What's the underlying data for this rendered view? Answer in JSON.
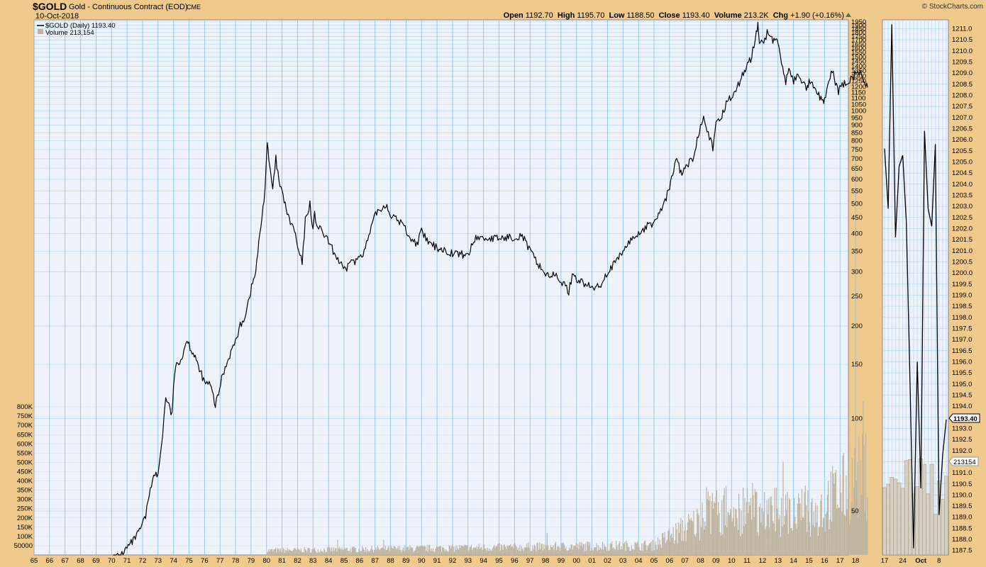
{
  "header": {
    "symbol": "$GOLD",
    "description": "Gold - Continuous Contract (EOD)",
    "exchange": "CME",
    "date": "10-Oct-2018",
    "brand": "© StockCharts.com",
    "open_label": "Open",
    "open": "1192.70",
    "high_label": "High",
    "high": "1195.70",
    "low_label": "Low",
    "low": "1188.50",
    "close_label": "Close",
    "close": "1193.40",
    "volume_label": "Volume",
    "volume": "213.2K",
    "chg_label": "Chg",
    "chg": "+1.90 (+0.16%)"
  },
  "legend": {
    "price": "$GOLD (Daily) 1193.40",
    "volume": "Volume 213,154"
  },
  "colors": {
    "frame": "#f0c98c",
    "plot_bg": "#eef2fb",
    "grid_minor": "#aed4ec",
    "grid_major": "#7fc0e6",
    "price_line": "#000000",
    "volume": "#bfb4a0"
  },
  "chart_data": [
    {
      "type": "line",
      "name": "main",
      "log_scale": true,
      "grid": true,
      "legend_position": "top-left",
      "ylim": [
        36,
        1980
      ],
      "xlim": [
        1965,
        1990.0
      ],
      "x_tick_labels": [
        "65",
        "66",
        "67",
        "68",
        "69",
        "70",
        "71",
        "72",
        "73",
        "74",
        "75",
        "76",
        "77",
        "78",
        "79",
        "80",
        "81",
        "82",
        "83",
        "84",
        "85",
        "86",
        "87",
        "88",
        "89",
        "90",
        "91",
        "92",
        "93",
        "94",
        "95",
        "96",
        "97",
        "98",
        "99",
        "00",
        "01",
        "02",
        "03",
        "04",
        "05",
        "06",
        "07",
        "08",
        "09",
        "10",
        "11",
        "12",
        "13",
        "14",
        "15",
        "16",
        "17",
        "18"
      ],
      "y_tick_labels": [
        "1950",
        "1900",
        "1850",
        "1800",
        "1750",
        "1700",
        "1650",
        "1600",
        "1550",
        "1500",
        "1450",
        "1400",
        "1350",
        "1300",
        "1250",
        "1200",
        "1150",
        "1100",
        "1050",
        "1000",
        "950",
        "900",
        "850",
        "800",
        "750",
        "700",
        "650",
        "600",
        "550",
        "500",
        "450",
        "400",
        "350",
        "300",
        "250",
        "200",
        "150",
        "100",
        "50"
      ],
      "series": [
        {
          "name": "$GOLD (Daily)",
          "x": [
            1970.1,
            1970.6,
            1971.0,
            1971.4,
            1971.8,
            1972.2,
            1972.5,
            1972.8,
            1973.0,
            1973.3,
            1973.5,
            1973.7,
            1973.9,
            1974.0,
            1974.2,
            1974.4,
            1974.6,
            1974.8,
            1975.0,
            1975.2,
            1975.4,
            1975.6,
            1975.8,
            1976.0,
            1976.3,
            1976.5,
            1976.7,
            1976.9,
            1977.1,
            1977.4,
            1977.7,
            1978.0,
            1978.3,
            1978.6,
            1978.9,
            1979.1,
            1979.3,
            1979.5,
            1979.7,
            1979.9,
            1980.05,
            1980.15,
            1980.25,
            1980.4,
            1980.6,
            1980.8,
            1981.0,
            1981.2,
            1981.4,
            1981.6,
            1981.8,
            1982.0,
            1982.3,
            1982.5,
            1982.8,
            1983.0,
            1983.1,
            1983.3,
            1983.5,
            1983.8,
            1984.0,
            1984.3,
            1984.6,
            1984.9,
            1985.1,
            1985.4,
            1985.7,
            1986.0,
            1986.3,
            1986.6,
            1986.9,
            1987.1,
            1987.4,
            1987.7,
            1987.9,
            1988.2,
            1988.5,
            1988.8,
            1989.1,
            1989.4,
            1989.7,
            1990.0
          ],
          "y": [
            35,
            36,
            38,
            40,
            43,
            48,
            60,
            66,
            65,
            90,
            118,
            110,
            102,
            130,
            150,
            155,
            160,
            180,
            175,
            165,
            160,
            145,
            140,
            130,
            130,
            122,
            110,
            120,
            135,
            150,
            165,
            178,
            200,
            215,
            250,
            275,
            300,
            370,
            450,
            560,
            800,
            680,
            640,
            550,
            700,
            590,
            540,
            500,
            450,
            430,
            410,
            360,
            320,
            440,
            500,
            410,
            460,
            420,
            410,
            390,
            375,
            350,
            330,
            310,
            300,
            330,
            320,
            340,
            350,
            390,
            440,
            470,
            480,
            500,
            470,
            450,
            440,
            430,
            400,
            380,
            370,
            405
          ]
        }
      ]
    },
    {
      "type": "bar",
      "name": "volume",
      "ylim": [
        0,
        900000
      ],
      "y_tick_labels": [
        "800K",
        "750K",
        "700K",
        "650K",
        "600K",
        "550K",
        "500K",
        "450K",
        "400K",
        "350K",
        "300K",
        "250K",
        "200K",
        "150K",
        "100K",
        "50000"
      ],
      "series": [
        {
          "name": "Volume",
          "start_year": 1980.0,
          "end_year": 2018.8,
          "peak": 832000
        }
      ]
    },
    {
      "type": "line",
      "name": "detail",
      "ylim": [
        1187.3,
        1211.4
      ],
      "x_tick_labels": [
        "17",
        "24",
        "Oct",
        "8"
      ],
      "y_tick_labels": [
        "1211.0",
        "1210.5",
        "1210.0",
        "1209.5",
        "1209.0",
        "1208.5",
        "1208.0",
        "1207.5",
        "1207.0",
        "1206.5",
        "1206.0",
        "1205.5",
        "1205.0",
        "1204.5",
        "1204.0",
        "1203.5",
        "1203.0",
        "1202.5",
        "1202.0",
        "1201.5",
        "1201.0",
        "1200.5",
        "1200.0",
        "1199.5",
        "1199.0",
        "1198.5",
        "1198.0",
        "1197.5",
        "1197.0",
        "1196.5",
        "1196.0",
        "1195.5",
        "1195.0",
        "1194.5",
        "1194.0",
        "1193.5",
        "1193.0",
        "1192.5",
        "1192.0",
        "1191.5",
        "1191.0",
        "1190.5",
        "1190.0",
        "1189.5",
        "1189.0",
        "1188.5",
        "1188.0",
        "1187.5"
      ],
      "close_label": "1193.40",
      "volume_label": "213154",
      "series": [
        {
          "name": "close",
          "values": [
            1205.6,
            1202.9,
            1211.2,
            1201.6,
            1204.8,
            1205.3,
            1202.3,
            1195.2,
            1187.6,
            1196.0,
            1190.3,
            1206.4,
            1202.9,
            1202.1,
            1205.8,
            1189.1,
            1191.8,
            1193.4
          ]
        },
        {
          "name": "volume",
          "values": [
            182000,
            190000,
            210000,
            205000,
            195000,
            180000,
            255000,
            258000,
            165000,
            185000,
            260000,
            245000,
            165000,
            245000,
            110000,
            200000,
            150000,
            213154
          ]
        }
      ]
    }
  ]
}
